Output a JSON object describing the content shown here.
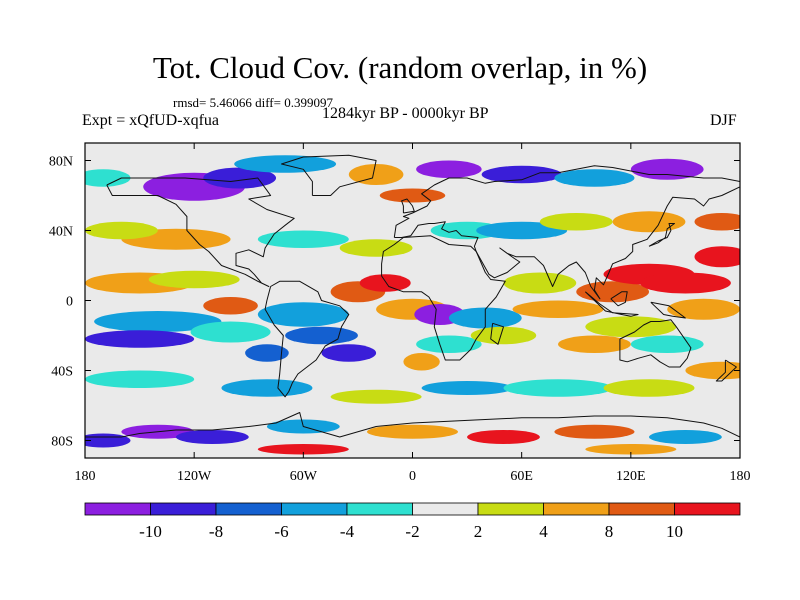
{
  "title": "Tot. Cloud Cov. (random overlap, in %)",
  "stats": "rmsd= 5.46066 diff= 0.399097",
  "experiment": "Expt = xQfUD-xqfua",
  "period": "1284kyr BP - 0000kyr BP",
  "season": "DJF",
  "axes": {
    "x_ticks": [
      {
        "label": "180",
        "lon": -180
      },
      {
        "label": "120W",
        "lon": -120
      },
      {
        "label": "60W",
        "lon": -60
      },
      {
        "label": "0",
        "lon": 0
      },
      {
        "label": "60E",
        "lon": 60
      },
      {
        "label": "120E",
        "lon": 120
      },
      {
        "label": "180",
        "lon": 180
      }
    ],
    "y_ticks": [
      {
        "label": "80N",
        "lat": 80
      },
      {
        "label": "40N",
        "lat": 40
      },
      {
        "label": "0",
        "lat": 0
      },
      {
        "label": "40S",
        "lat": -40
      },
      {
        "label": "80S",
        "lat": -80
      }
    ]
  },
  "colorbar": {
    "colors": [
      "#8c1fe0",
      "#3a1ed8",
      "#1460d0",
      "#12a0dc",
      "#2ee0d0",
      "#eaeaea",
      "#c8dc14",
      "#f0a018",
      "#e05a14",
      "#e8141e"
    ],
    "labels": [
      "-10",
      "-8",
      "-6",
      "-4",
      "-2",
      "2",
      "4",
      "8",
      "10"
    ]
  },
  "palette": {
    "neutral": "#eaeaea",
    "coast": "#111111"
  }
}
